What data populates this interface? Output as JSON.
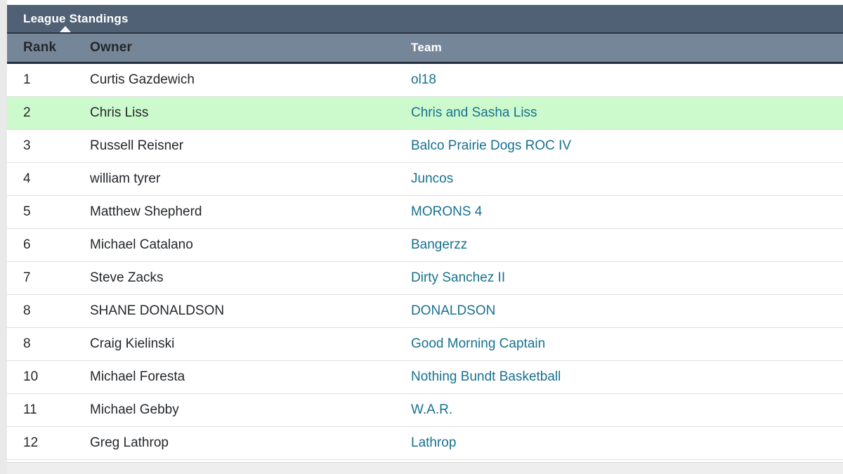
{
  "table": {
    "title": "League Standings",
    "sort_indicator": "triangle-up-icon",
    "columns": {
      "rank": "Rank",
      "owner": "Owner",
      "team": "Team"
    },
    "rows": [
      {
        "rank": "1",
        "owner": "Curtis Gazdewich",
        "team": "ol18",
        "highlighted": false
      },
      {
        "rank": "2",
        "owner": "Chris Liss",
        "team": "Chris and Sasha Liss",
        "highlighted": true
      },
      {
        "rank": "3",
        "owner": "Russell Reisner",
        "team": "Balco Prairie Dogs ROC IV",
        "highlighted": false
      },
      {
        "rank": "4",
        "owner": "william tyrer",
        "team": "Juncos",
        "highlighted": false
      },
      {
        "rank": "5",
        "owner": "Matthew Shepherd",
        "team": "MORONS 4",
        "highlighted": false
      },
      {
        "rank": "6",
        "owner": "Michael Catalano",
        "team": "Bangerzz",
        "highlighted": false
      },
      {
        "rank": "7",
        "owner": "Steve Zacks",
        "team": "Dirty Sanchez II",
        "highlighted": false
      },
      {
        "rank": "8",
        "owner": "SHANE DONALDSON",
        "team": "DONALDSON",
        "highlighted": false
      },
      {
        "rank": "8",
        "owner": "Craig Kielinski",
        "team": "Good Morning Captain",
        "highlighted": false
      },
      {
        "rank": "10",
        "owner": "Michael Foresta",
        "team": "Nothing Bundt Basketball",
        "highlighted": false
      },
      {
        "rank": "11",
        "owner": "Michael Gebby",
        "team": "W.A.R.",
        "highlighted": false
      },
      {
        "rank": "12",
        "owner": "Greg Lathrop",
        "team": "Lathrop",
        "highlighted": false
      }
    ]
  },
  "colors": {
    "title_bar_bg": "#506175",
    "column_header_bg": "#768699",
    "header_divider": "#27303e",
    "highlight_row_bg": "#ccfacd",
    "team_link": "#17718f",
    "body_text": "#24272b",
    "row_border": "#e0e0e0",
    "page_margin_gray": "#e9e9e9"
  }
}
